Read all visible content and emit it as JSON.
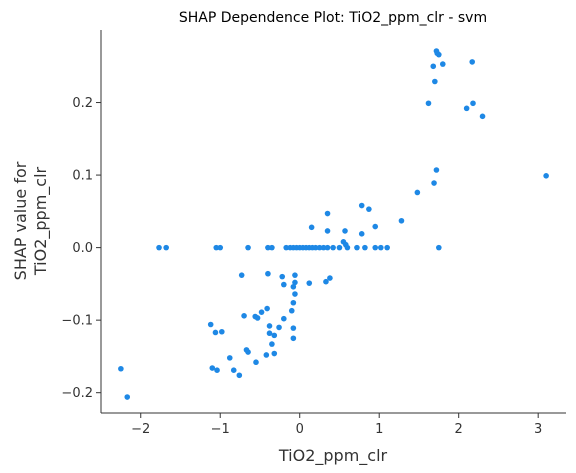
{
  "chart_data": {
    "type": "scatter",
    "title": "SHAP Dependence Plot: TiO2_ppm_clr - svm",
    "xlabel": "TiO2_ppm_clr",
    "ylabel_line1": "SHAP value for",
    "ylabel_line2": "TiO2_ppm_clr",
    "xlim": [
      -2.5,
      3.35
    ],
    "ylim": [
      -0.228,
      0.3
    ],
    "x_ticks": [
      -2,
      -1,
      0,
      1,
      2,
      3
    ],
    "x_tick_labels": [
      "−2",
      "−1",
      "0",
      "1",
      "2",
      "3"
    ],
    "y_ticks": [
      -0.2,
      -0.1,
      0.0,
      0.1,
      0.2
    ],
    "y_tick_labels": [
      "−0.2",
      "−0.1",
      "0.0",
      "0.1",
      "0.2"
    ],
    "grid": false,
    "point_color": "#1e88e5",
    "points": [
      [
        1.72,
        0.271
      ],
      [
        1.75,
        0.266
      ],
      [
        1.73,
        0.268
      ],
      [
        2.17,
        0.256
      ],
      [
        1.8,
        0.253
      ],
      [
        1.68,
        0.25
      ],
      [
        1.7,
        0.229
      ],
      [
        1.62,
        0.199
      ],
      [
        2.18,
        0.199
      ],
      [
        2.1,
        0.192
      ],
      [
        2.3,
        0.181
      ],
      [
        3.1,
        0.099
      ],
      [
        1.72,
        0.107
      ],
      [
        1.69,
        0.089
      ],
      [
        1.48,
        0.076
      ],
      [
        0.78,
        0.058
      ],
      [
        0.87,
        0.053
      ],
      [
        0.35,
        0.047
      ],
      [
        1.28,
        0.037
      ],
      [
        0.95,
        0.029
      ],
      [
        0.15,
        0.028
      ],
      [
        0.57,
        0.023
      ],
      [
        0.35,
        0.023
      ],
      [
        0.78,
        0.019
      ],
      [
        0.55,
        0.008
      ],
      [
        -1.77,
        0.0
      ],
      [
        -1.68,
        0.0
      ],
      [
        -1.05,
        0.0
      ],
      [
        -1.0,
        0.0
      ],
      [
        -0.65,
        0.0
      ],
      [
        -0.4,
        0.0
      ],
      [
        -0.35,
        0.0
      ],
      [
        -0.17,
        0.0
      ],
      [
        -0.12,
        0.0
      ],
      [
        -0.08,
        0.0
      ],
      [
        -0.04,
        0.0
      ],
      [
        0.0,
        0.0
      ],
      [
        0.04,
        0.0
      ],
      [
        0.08,
        0.0
      ],
      [
        0.12,
        0.0
      ],
      [
        0.16,
        0.0
      ],
      [
        0.2,
        0.0
      ],
      [
        0.25,
        0.0
      ],
      [
        0.3,
        0.0
      ],
      [
        0.35,
        0.0
      ],
      [
        0.42,
        0.0
      ],
      [
        0.5,
        0.0
      ],
      [
        0.6,
        0.0
      ],
      [
        0.72,
        0.0
      ],
      [
        0.82,
        0.0
      ],
      [
        0.95,
        0.0
      ],
      [
        1.02,
        0.0
      ],
      [
        1.1,
        0.0
      ],
      [
        1.75,
        0.0
      ],
      [
        0.58,
        0.004
      ],
      [
        -0.73,
        -0.038
      ],
      [
        -0.4,
        -0.036
      ],
      [
        -0.06,
        -0.038
      ],
      [
        -0.22,
        -0.04
      ],
      [
        -0.06,
        -0.048
      ],
      [
        -0.2,
        -0.051
      ],
      [
        0.38,
        -0.042
      ],
      [
        0.33,
        -0.047
      ],
      [
        0.12,
        -0.049
      ],
      [
        -0.08,
        -0.054
      ],
      [
        -0.06,
        -0.064
      ],
      [
        -0.08,
        -0.076
      ],
      [
        -0.41,
        -0.084
      ],
      [
        -0.48,
        -0.089
      ],
      [
        -0.1,
        -0.087
      ],
      [
        -0.7,
        -0.094
      ],
      [
        -0.56,
        -0.095
      ],
      [
        -0.53,
        -0.097
      ],
      [
        -0.2,
        -0.098
      ],
      [
        -1.12,
        -0.106
      ],
      [
        -0.38,
        -0.108
      ],
      [
        -0.26,
        -0.11
      ],
      [
        -0.08,
        -0.111
      ],
      [
        -1.06,
        -0.117
      ],
      [
        -0.98,
        -0.116
      ],
      [
        -0.38,
        -0.118
      ],
      [
        -0.32,
        -0.121
      ],
      [
        -0.08,
        -0.125
      ],
      [
        -0.35,
        -0.133
      ],
      [
        -0.67,
        -0.141
      ],
      [
        -0.65,
        -0.144
      ],
      [
        -0.42,
        -0.148
      ],
      [
        -0.32,
        -0.146
      ],
      [
        -0.88,
        -0.152
      ],
      [
        -0.55,
        -0.158
      ],
      [
        -1.1,
        -0.166
      ],
      [
        -1.04,
        -0.169
      ],
      [
        -0.83,
        -0.169
      ],
      [
        -0.76,
        -0.176
      ],
      [
        -2.25,
        -0.167
      ],
      [
        -2.17,
        -0.206
      ]
    ]
  }
}
